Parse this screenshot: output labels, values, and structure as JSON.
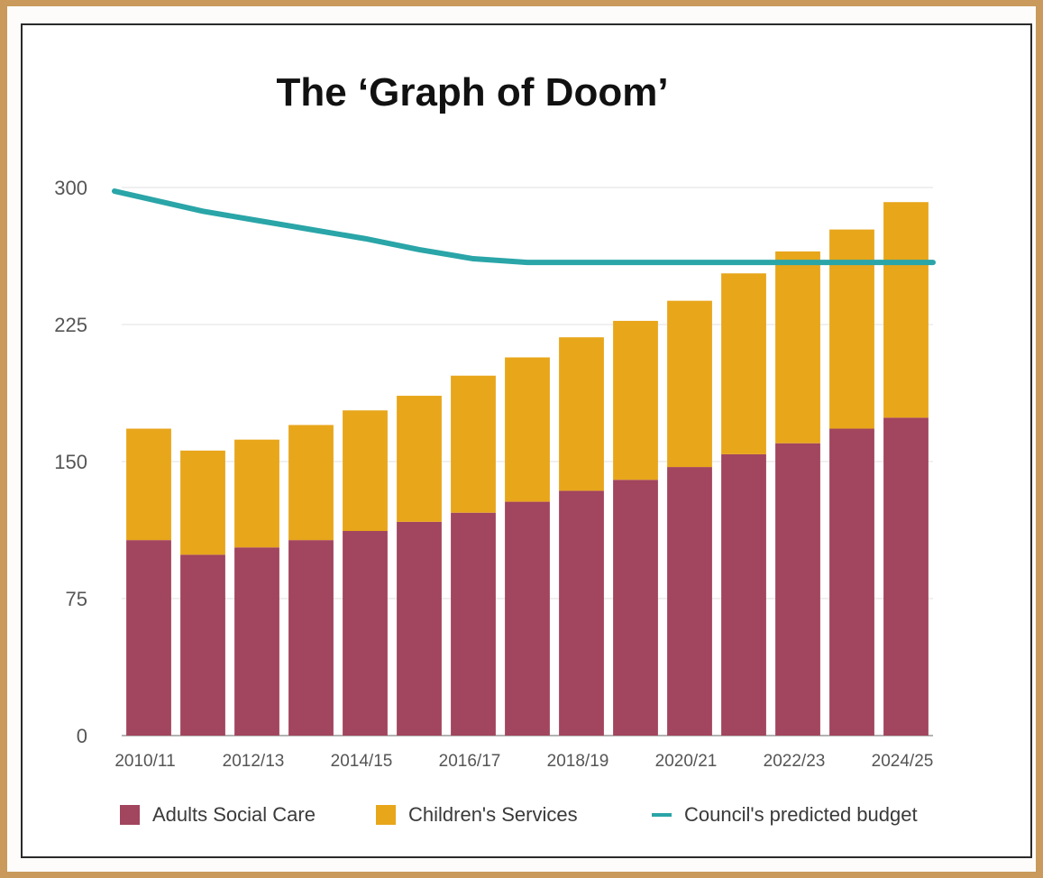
{
  "chart_data": {
    "type": "bar",
    "stacked": true,
    "title": "The ‘Graph of Doom’",
    "xlabel": "",
    "ylabel": "",
    "ylim": [
      0,
      300
    ],
    "yticks": [
      0,
      75,
      150,
      225,
      300
    ],
    "categories": [
      "2010/11",
      "2011/12",
      "2012/13",
      "2013/14",
      "2014/15",
      "2015/16",
      "2016/17",
      "2017/18",
      "2018/19",
      "2019/20",
      "2020/21",
      "2021/22",
      "2022/23",
      "2023/24",
      "2024/25"
    ],
    "xtick_labels": [
      "2010/11",
      "2012/13",
      "2014/15",
      "2016/17",
      "2018/19",
      "2020/21",
      "2022/23",
      "2024/25"
    ],
    "grid": "horizontal",
    "legend_position": "bottom",
    "series": [
      {
        "name": "Adults Social Care",
        "type": "bar",
        "color": "#a2455e",
        "values": [
          107,
          99,
          103,
          107,
          112,
          117,
          122,
          128,
          134,
          140,
          147,
          154,
          160,
          168,
          174
        ]
      },
      {
        "name": "Children's Services",
        "type": "bar",
        "color": "#e8a61b",
        "values": [
          61,
          57,
          59,
          63,
          66,
          69,
          75,
          79,
          84,
          87,
          91,
          99,
          105,
          109,
          118
        ]
      },
      {
        "name": "Council's predicted budget",
        "type": "line",
        "color": "#2aa5a8",
        "values": [
          298,
          287,
          282,
          277,
          272,
          266,
          261,
          259,
          259,
          259,
          259,
          259,
          259,
          259,
          259
        ]
      }
    ]
  }
}
